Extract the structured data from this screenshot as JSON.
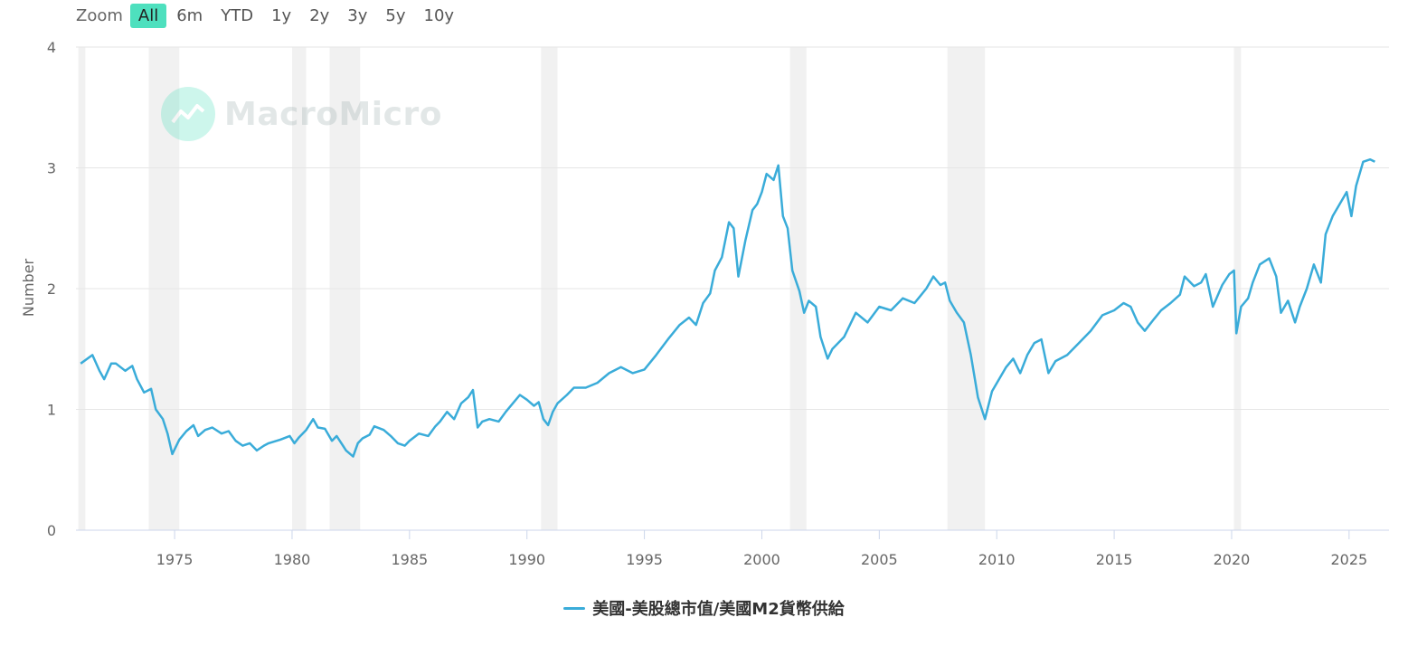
{
  "zoom": {
    "label": "Zoom",
    "options": [
      "All",
      "6m",
      "YTD",
      "1y",
      "2y",
      "3y",
      "5y",
      "10y"
    ],
    "active": "All"
  },
  "watermark": {
    "text": "MacroMicro"
  },
  "legend": {
    "label": "美國-美股總市值/美國M2貨幣供給"
  },
  "colors": {
    "line": "#3aacd9",
    "recession": "#f1f1f1",
    "grid": "#e6e6e6",
    "accent": "#4ee0be"
  },
  "chart_data": {
    "type": "line",
    "title": "",
    "xlabel": "",
    "ylabel": "Number",
    "ylim": [
      0,
      4
    ],
    "xlim": [
      1970.8,
      2026.7
    ],
    "y_ticks": [
      "0",
      "1",
      "2",
      "3",
      "4"
    ],
    "x_ticks": [
      "1975",
      "1980",
      "1985",
      "1990",
      "1995",
      "2000",
      "2005",
      "2010",
      "2015",
      "2020",
      "2025"
    ],
    "grid": true,
    "legend_position": "bottom-center",
    "recessions": [
      [
        1970.9,
        1971.2
      ],
      [
        1973.9,
        1975.2
      ],
      [
        1980.0,
        1980.6
      ],
      [
        1981.6,
        1982.9
      ],
      [
        1990.6,
        1991.3
      ],
      [
        2001.2,
        2001.9
      ],
      [
        2007.9,
        2009.5
      ],
      [
        2020.1,
        2020.4
      ]
    ],
    "series": [
      {
        "name": "美國-美股總市值/美國M2貨幣供給",
        "x": [
          1971.0,
          1971.5,
          1971.8,
          1972.0,
          1972.3,
          1972.5,
          1972.9,
          1973.2,
          1973.4,
          1973.7,
          1973.9,
          1974.0,
          1974.2,
          1974.5,
          1974.7,
          1974.9,
          1975.2,
          1975.5,
          1975.8,
          1976.0,
          1976.3,
          1976.6,
          1977.0,
          1977.3,
          1977.6,
          1977.9,
          1978.2,
          1978.5,
          1978.8,
          1979.0,
          1979.5,
          1979.9,
          1980.1,
          1980.3,
          1980.6,
          1980.9,
          1981.1,
          1981.4,
          1981.7,
          1981.9,
          1982.3,
          1982.6,
          1982.8,
          1983.0,
          1983.3,
          1983.5,
          1983.9,
          1984.2,
          1984.5,
          1984.8,
          1985.0,
          1985.4,
          1985.8,
          1986.1,
          1986.3,
          1986.6,
          1986.9,
          1987.2,
          1987.5,
          1987.7,
          1987.9,
          1988.1,
          1988.4,
          1988.8,
          1989.1,
          1989.4,
          1989.7,
          1990.0,
          1990.3,
          1990.5,
          1990.7,
          1990.9,
          1991.1,
          1991.3,
          1991.7,
          1992.0,
          1992.5,
          1993.0,
          1993.5,
          1994.0,
          1994.5,
          1995.0,
          1995.5,
          1996.0,
          1996.5,
          1996.9,
          1997.2,
          1997.5,
          1997.8,
          1998.0,
          1998.3,
          1998.6,
          1998.8,
          1999.0,
          1999.3,
          1999.6,
          1999.8,
          2000.0,
          2000.2,
          2000.5,
          2000.7,
          2000.9,
          2001.1,
          2001.3,
          2001.6,
          2001.8,
          2002.0,
          2002.3,
          2002.5,
          2002.8,
          2003.0,
          2003.5,
          2004.0,
          2004.5,
          2005.0,
          2005.5,
          2006.0,
          2006.5,
          2007.0,
          2007.3,
          2007.6,
          2007.8,
          2008.0,
          2008.3,
          2008.6,
          2008.9,
          2009.2,
          2009.5,
          2009.8,
          2010.1,
          2010.4,
          2010.7,
          2011.0,
          2011.3,
          2011.6,
          2011.9,
          2012.2,
          2012.5,
          2013.0,
          2013.5,
          2014.0,
          2014.5,
          2015.0,
          2015.4,
          2015.7,
          2016.0,
          2016.3,
          2016.7,
          2017.0,
          2017.4,
          2017.8,
          2018.0,
          2018.4,
          2018.7,
          2018.9,
          2019.2,
          2019.6,
          2019.9,
          2020.1,
          2020.2,
          2020.4,
          2020.7,
          2020.9,
          2021.2,
          2021.6,
          2021.9,
          2022.1,
          2022.4,
          2022.7,
          2022.9,
          2023.2,
          2023.5,
          2023.8,
          2024.0,
          2024.3,
          2024.6,
          2024.9,
          2025.1,
          2025.3,
          2025.6,
          2025.9,
          2026.1
        ],
        "y": [
          1.38,
          1.45,
          1.32,
          1.25,
          1.38,
          1.38,
          1.32,
          1.36,
          1.25,
          1.14,
          1.16,
          1.17,
          1.0,
          0.92,
          0.8,
          0.63,
          0.75,
          0.82,
          0.87,
          0.78,
          0.83,
          0.85,
          0.8,
          0.82,
          0.74,
          0.7,
          0.72,
          0.66,
          0.7,
          0.72,
          0.75,
          0.78,
          0.72,
          0.77,
          0.83,
          0.92,
          0.85,
          0.84,
          0.74,
          0.78,
          0.66,
          0.61,
          0.72,
          0.76,
          0.79,
          0.86,
          0.83,
          0.78,
          0.72,
          0.7,
          0.74,
          0.8,
          0.78,
          0.86,
          0.9,
          0.98,
          0.92,
          1.05,
          1.1,
          1.16,
          0.85,
          0.9,
          0.92,
          0.9,
          0.98,
          1.05,
          1.12,
          1.08,
          1.03,
          1.06,
          0.92,
          0.87,
          0.98,
          1.05,
          1.12,
          1.18,
          1.18,
          1.22,
          1.3,
          1.35,
          1.3,
          1.33,
          1.45,
          1.58,
          1.7,
          1.76,
          1.7,
          1.88,
          1.96,
          2.15,
          2.26,
          2.55,
          2.5,
          2.1,
          2.4,
          2.65,
          2.7,
          2.8,
          2.95,
          2.9,
          3.02,
          2.6,
          2.5,
          2.15,
          1.98,
          1.8,
          1.9,
          1.85,
          1.6,
          1.42,
          1.5,
          1.6,
          1.8,
          1.72,
          1.85,
          1.82,
          1.92,
          1.88,
          2.0,
          2.1,
          2.03,
          2.05,
          1.9,
          1.8,
          1.72,
          1.45,
          1.1,
          0.92,
          1.15,
          1.25,
          1.35,
          1.42,
          1.3,
          1.45,
          1.55,
          1.58,
          1.3,
          1.4,
          1.45,
          1.55,
          1.65,
          1.78,
          1.82,
          1.88,
          1.85,
          1.72,
          1.65,
          1.75,
          1.82,
          1.88,
          1.95,
          2.1,
          2.02,
          2.05,
          2.12,
          1.85,
          2.03,
          2.12,
          2.15,
          1.63,
          1.85,
          1.92,
          2.05,
          2.2,
          2.25,
          2.1,
          1.8,
          1.9,
          1.72,
          1.85,
          2.0,
          2.2,
          2.05,
          2.45,
          2.6,
          2.7,
          2.8,
          2.6,
          2.85,
          3.05,
          3.07,
          3.05
        ]
      }
    ]
  }
}
